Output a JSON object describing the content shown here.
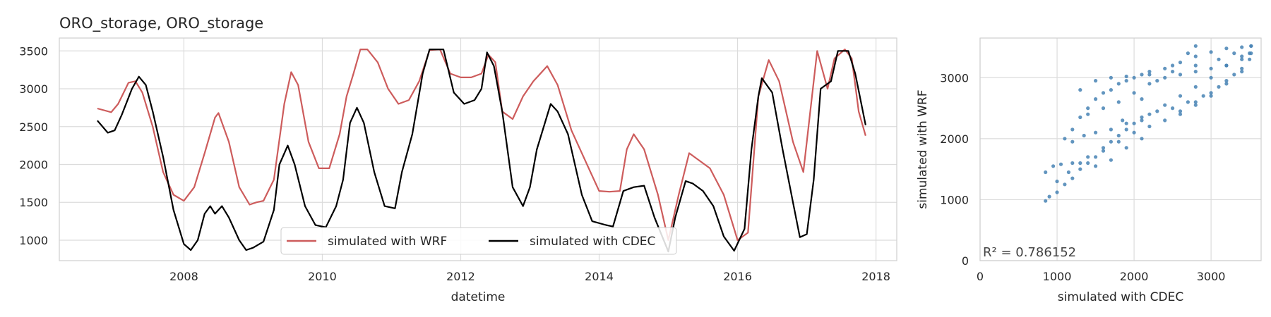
{
  "chart_data": [
    {
      "type": "line",
      "title": "ORO_storage, ORO_storage",
      "xlabel": "datetime",
      "ylabel": "",
      "xlim": [
        2006.2,
        2018.3
      ],
      "ylim": [
        730,
        3670
      ],
      "x_ticks": [
        2008,
        2010,
        2012,
        2014,
        2016,
        2018
      ],
      "y_ticks": [
        1000,
        1500,
        2000,
        2500,
        3000,
        3500
      ],
      "x_tick_labels": [
        "2008",
        "2010",
        "2012",
        "2014",
        "2016",
        "2018"
      ],
      "y_tick_labels": [
        "1000",
        "1500",
        "2000",
        "2500",
        "3000",
        "3500"
      ],
      "grid": true,
      "legend": {
        "placement": "lower-center",
        "columns": 2
      },
      "colors": {
        "wrf": "#cd5c5c",
        "cdec": "#000000"
      },
      "series": [
        {
          "name": "simulated with WRF",
          "color": "#cd5c5c",
          "points": [
            [
              2006.75,
              2740
            ],
            [
              2006.95,
              2690
            ],
            [
              2007.05,
              2800
            ],
            [
              2007.2,
              3080
            ],
            [
              2007.3,
              3100
            ],
            [
              2007.4,
              2950
            ],
            [
              2007.55,
              2500
            ],
            [
              2007.7,
              1900
            ],
            [
              2007.85,
              1600
            ],
            [
              2008.0,
              1520
            ],
            [
              2008.15,
              1700
            ],
            [
              2008.3,
              2150
            ],
            [
              2008.45,
              2620
            ],
            [
              2008.5,
              2680
            ],
            [
              2008.65,
              2300
            ],
            [
              2008.8,
              1700
            ],
            [
              2008.95,
              1470
            ],
            [
              2009.05,
              1500
            ],
            [
              2009.15,
              1520
            ],
            [
              2009.3,
              1800
            ],
            [
              2009.45,
              2800
            ],
            [
              2009.55,
              3220
            ],
            [
              2009.65,
              3050
            ],
            [
              2009.8,
              2300
            ],
            [
              2009.95,
              1950
            ],
            [
              2010.1,
              1950
            ],
            [
              2010.25,
              2400
            ],
            [
              2010.35,
              2900
            ],
            [
              2010.45,
              3200
            ],
            [
              2010.55,
              3520
            ],
            [
              2010.65,
              3520
            ],
            [
              2010.8,
              3350
            ],
            [
              2010.95,
              3000
            ],
            [
              2011.1,
              2800
            ],
            [
              2011.25,
              2850
            ],
            [
              2011.4,
              3100
            ],
            [
              2011.55,
              3510
            ],
            [
              2011.7,
              3520
            ],
            [
              2011.85,
              3200
            ],
            [
              2012.0,
              3150
            ],
            [
              2012.15,
              3150
            ],
            [
              2012.3,
              3200
            ],
            [
              2012.4,
              3450
            ],
            [
              2012.5,
              3350
            ],
            [
              2012.6,
              2700
            ],
            [
              2012.75,
              2600
            ],
            [
              2012.9,
              2900
            ],
            [
              2013.05,
              3100
            ],
            [
              2013.25,
              3300
            ],
            [
              2013.4,
              3050
            ],
            [
              2013.6,
              2450
            ],
            [
              2013.85,
              1950
            ],
            [
              2014.0,
              1650
            ],
            [
              2014.15,
              1640
            ],
            [
              2014.3,
              1650
            ],
            [
              2014.4,
              2200
            ],
            [
              2014.5,
              2400
            ],
            [
              2014.65,
              2200
            ],
            [
              2014.85,
              1600
            ],
            [
              2015.0,
              1000
            ],
            [
              2015.15,
              1600
            ],
            [
              2015.3,
              2150
            ],
            [
              2015.45,
              2050
            ],
            [
              2015.6,
              1950
            ],
            [
              2015.8,
              1600
            ],
            [
              2016.0,
              1000
            ],
            [
              2016.15,
              1100
            ],
            [
              2016.3,
              2900
            ],
            [
              2016.45,
              3380
            ],
            [
              2016.6,
              3100
            ],
            [
              2016.8,
              2300
            ],
            [
              2016.95,
              1900
            ],
            [
              2017.05,
              2700
            ],
            [
              2017.15,
              3500
            ],
            [
              2017.3,
              3000
            ],
            [
              2017.4,
              3400
            ],
            [
              2017.55,
              3520
            ],
            [
              2017.65,
              3400
            ],
            [
              2017.75,
              2700
            ],
            [
              2017.85,
              2380
            ]
          ]
        },
        {
          "name": "simulated with CDEC",
          "color": "#000000",
          "points": [
            [
              2006.75,
              2580
            ],
            [
              2006.9,
              2420
            ],
            [
              2007.0,
              2450
            ],
            [
              2007.1,
              2650
            ],
            [
              2007.25,
              3000
            ],
            [
              2007.35,
              3160
            ],
            [
              2007.45,
              3050
            ],
            [
              2007.55,
              2700
            ],
            [
              2007.7,
              2100
            ],
            [
              2007.85,
              1400
            ],
            [
              2008.0,
              950
            ],
            [
              2008.1,
              870
            ],
            [
              2008.2,
              1000
            ],
            [
              2008.3,
              1350
            ],
            [
              2008.38,
              1450
            ],
            [
              2008.45,
              1350
            ],
            [
              2008.55,
              1450
            ],
            [
              2008.65,
              1300
            ],
            [
              2008.8,
              1000
            ],
            [
              2008.9,
              870
            ],
            [
              2009.0,
              900
            ],
            [
              2009.15,
              980
            ],
            [
              2009.3,
              1400
            ],
            [
              2009.38,
              2000
            ],
            [
              2009.5,
              2250
            ],
            [
              2009.6,
              2000
            ],
            [
              2009.75,
              1450
            ],
            [
              2009.9,
              1200
            ],
            [
              2010.05,
              1170
            ],
            [
              2010.2,
              1450
            ],
            [
              2010.3,
              1800
            ],
            [
              2010.4,
              2550
            ],
            [
              2010.5,
              2750
            ],
            [
              2010.6,
              2550
            ],
            [
              2010.75,
              1900
            ],
            [
              2010.9,
              1450
            ],
            [
              2011.05,
              1420
            ],
            [
              2011.15,
              1900
            ],
            [
              2011.3,
              2400
            ],
            [
              2011.45,
              3200
            ],
            [
              2011.55,
              3520
            ],
            [
              2011.75,
              3520
            ],
            [
              2011.9,
              2950
            ],
            [
              2012.05,
              2800
            ],
            [
              2012.2,
              2850
            ],
            [
              2012.3,
              3000
            ],
            [
              2012.38,
              3480
            ],
            [
              2012.48,
              3300
            ],
            [
              2012.6,
              2700
            ],
            [
              2012.75,
              1700
            ],
            [
              2012.9,
              1450
            ],
            [
              2013.0,
              1700
            ],
            [
              2013.1,
              2200
            ],
            [
              2013.3,
              2800
            ],
            [
              2013.4,
              2700
            ],
            [
              2013.55,
              2400
            ],
            [
              2013.75,
              1600
            ],
            [
              2013.9,
              1250
            ],
            [
              2014.1,
              1200
            ],
            [
              2014.2,
              1180
            ],
            [
              2014.35,
              1650
            ],
            [
              2014.5,
              1700
            ],
            [
              2014.65,
              1720
            ],
            [
              2014.8,
              1300
            ],
            [
              2015.0,
              850
            ],
            [
              2015.1,
              1300
            ],
            [
              2015.25,
              1780
            ],
            [
              2015.35,
              1750
            ],
            [
              2015.5,
              1650
            ],
            [
              2015.65,
              1450
            ],
            [
              2015.8,
              1050
            ],
            [
              2015.95,
              860
            ],
            [
              2016.1,
              1150
            ],
            [
              2016.2,
              2200
            ],
            [
              2016.3,
              2900
            ],
            [
              2016.35,
              3140
            ],
            [
              2016.5,
              2950
            ],
            [
              2016.65,
              2200
            ],
            [
              2016.8,
              1500
            ],
            [
              2016.9,
              1040
            ],
            [
              2017.0,
              1080
            ],
            [
              2017.1,
              1800
            ],
            [
              2017.2,
              3000
            ],
            [
              2017.35,
              3100
            ],
            [
              2017.45,
              3500
            ],
            [
              2017.6,
              3500
            ],
            [
              2017.7,
              3200
            ],
            [
              2017.85,
              2520
            ]
          ]
        }
      ]
    },
    {
      "type": "scatter",
      "title": "",
      "xlabel": "simulated with CDEC",
      "ylabel": "simulated with WRF",
      "xlim": [
        0,
        3650
      ],
      "ylim": [
        0,
        3650
      ],
      "x_ticks": [
        0,
        1000,
        2000,
        3000
      ],
      "y_ticks": [
        0,
        1000,
        2000,
        3000
      ],
      "x_tick_labels": [
        "0",
        "1000",
        "2000",
        "3000"
      ],
      "y_tick_labels": [
        "0",
        "1000",
        "2000",
        "3000"
      ],
      "grid": true,
      "annotation": "R² = 0.786152",
      "color": "#4682b4",
      "points": [
        [
          850,
          980
        ],
        [
          900,
          1050
        ],
        [
          1000,
          1120
        ],
        [
          1100,
          1250
        ],
        [
          1200,
          1350
        ],
        [
          1300,
          1500
        ],
        [
          1400,
          1600
        ],
        [
          1500,
          1700
        ],
        [
          1600,
          1850
        ],
        [
          1700,
          1950
        ],
        [
          1800,
          2050
        ],
        [
          1900,
          2150
        ],
        [
          2000,
          2250
        ],
        [
          2100,
          2300
        ],
        [
          2200,
          2400
        ],
        [
          2400,
          2550
        ],
        [
          2600,
          2700
        ],
        [
          2800,
          2850
        ],
        [
          3000,
          3000
        ],
        [
          3200,
          3200
        ],
        [
          3400,
          3350
        ],
        [
          3520,
          3520
        ],
        [
          850,
          1450
        ],
        [
          950,
          1550
        ],
        [
          1050,
          1580
        ],
        [
          1200,
          1600
        ],
        [
          1400,
          1700
        ],
        [
          1600,
          1800
        ],
        [
          1800,
          1950
        ],
        [
          2000,
          2100
        ],
        [
          2200,
          2200
        ],
        [
          2400,
          2300
        ],
        [
          2600,
          2450
        ],
        [
          2800,
          2600
        ],
        [
          3000,
          2750
        ],
        [
          3200,
          2950
        ],
        [
          3400,
          3150
        ],
        [
          3520,
          3400
        ],
        [
          1100,
          2000
        ],
        [
          1200,
          2150
        ],
        [
          1300,
          2350
        ],
        [
          1400,
          2500
        ],
        [
          1500,
          2650
        ],
        [
          1600,
          2750
        ],
        [
          1700,
          2800
        ],
        [
          1800,
          2900
        ],
        [
          1900,
          2950
        ],
        [
          2000,
          3000
        ],
        [
          2100,
          3050
        ],
        [
          2200,
          3100
        ],
        [
          2400,
          3150
        ],
        [
          2600,
          3250
        ],
        [
          2800,
          3350
        ],
        [
          3000,
          3420
        ],
        [
          3200,
          3480
        ],
        [
          3400,
          3500
        ],
        [
          3520,
          3520
        ],
        [
          1200,
          1950
        ],
        [
          1350,
          2050
        ],
        [
          1500,
          2100
        ],
        [
          1700,
          2150
        ],
        [
          1900,
          2250
        ],
        [
          2100,
          2350
        ],
        [
          2300,
          2450
        ],
        [
          2500,
          2500
        ],
        [
          2700,
          2600
        ],
        [
          2900,
          2700
        ],
        [
          3100,
          2850
        ],
        [
          3300,
          3050
        ],
        [
          3500,
          3300
        ],
        [
          1400,
          2400
        ],
        [
          1600,
          2500
        ],
        [
          1800,
          2600
        ],
        [
          2000,
          2750
        ],
        [
          2200,
          2900
        ],
        [
          2400,
          3000
        ],
        [
          2600,
          3050
        ],
        [
          2800,
          3100
        ],
        [
          3000,
          3150
        ],
        [
          3200,
          3200
        ],
        [
          3400,
          3300
        ],
        [
          1850,
          2300
        ],
        [
          2100,
          2650
        ],
        [
          2300,
          2950
        ],
        [
          2500,
          3200
        ],
        [
          2700,
          3400
        ],
        [
          2800,
          3520
        ],
        [
          2600,
          2400
        ],
        [
          2800,
          2550
        ],
        [
          3000,
          2700
        ],
        [
          3200,
          2900
        ],
        [
          3400,
          3100
        ],
        [
          3500,
          3400
        ],
        [
          1000,
          1300
        ],
        [
          1150,
          1450
        ],
        [
          1300,
          1600
        ],
        [
          1500,
          1550
        ],
        [
          1700,
          1650
        ],
        [
          1900,
          1850
        ],
        [
          2100,
          2000
        ],
        [
          1300,
          2800
        ],
        [
          1500,
          2950
        ],
        [
          1700,
          3000
        ],
        [
          1900,
          3020
        ],
        [
          2200,
          3050
        ],
        [
          2500,
          3100
        ],
        [
          2800,
          3200
        ],
        [
          3100,
          3300
        ],
        [
          3300,
          3400
        ]
      ]
    }
  ]
}
